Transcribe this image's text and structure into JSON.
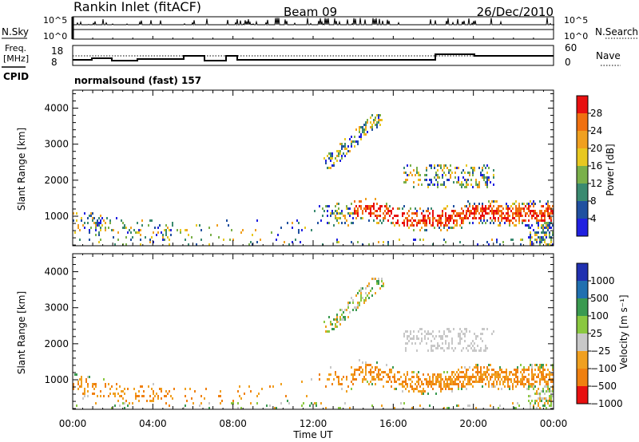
{
  "header": {
    "site": "Rankin Inlet (fitACF)",
    "beam": "Beam 09",
    "date": "26/Dec/2010"
  },
  "noise_panel": {
    "left_label": "N.Sky",
    "right_label": "N.Search",
    "left_ticks": [
      "10^5",
      "10^0"
    ],
    "right_ticks": [
      "10^5",
      "10^0"
    ]
  },
  "freq_panel": {
    "left_label_1": "Freq.",
    "left_label_2": "[MHz]",
    "right_label": "Nave",
    "left_ticks": [
      "18",
      "8"
    ],
    "right_ticks": [
      "60",
      "0"
    ],
    "cpid_label": "CPID",
    "cpid_text": "normalsound (fast)  157"
  },
  "chart_data": [
    {
      "type": "heatmap",
      "parameter": "Power",
      "ylabel": "Slant Range [km]",
      "ylim": [
        180,
        4500
      ],
      "yticks": [
        "1000",
        "2000",
        "3000",
        "4000"
      ],
      "colorbar_label": "Power [dB]",
      "colorbar_ticks": [
        "4",
        "8",
        "12",
        "16",
        "20",
        "24",
        "28"
      ],
      "colors": [
        "#2020e0",
        "#2050a0",
        "#3a8a70",
        "#7ab04a",
        "#e8c820",
        "#f0a020",
        "#f07010",
        "#e81010"
      ]
    },
    {
      "type": "heatmap",
      "parameter": "Velocity",
      "ylabel": "Slant Range [km]",
      "ylim": [
        180,
        4500
      ],
      "yticks": [
        "1000",
        "2000",
        "3000",
        "4000"
      ],
      "colorbar_label": "Velocity [m s⁻¹]",
      "colorbar_ticks": [
        "1000",
        "500",
        "100",
        "25",
        "−25",
        "−100",
        "−500",
        "−1000"
      ],
      "colors": [
        "#2030b0",
        "#2070b0",
        "#3a9a50",
        "#8ac840",
        "#c8c8c8",
        "#f0a020",
        "#f08010",
        "#e81010"
      ]
    }
  ],
  "time_axis": {
    "label": "Time UT",
    "ticks": [
      "00:00",
      "04:00",
      "08:00",
      "12:00",
      "16:00",
      "20:00",
      "00:00"
    ]
  }
}
